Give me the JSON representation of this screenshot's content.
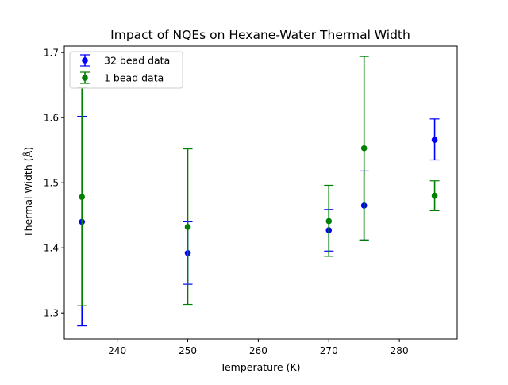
{
  "chart_data": {
    "type": "scatter",
    "title": "Impact of NQEs on Hexane-Water Thermal Width",
    "xlabel": "Temperature (K)",
    "ylabel": "Thermal Width (Å)",
    "xlim": [
      232.5,
      288.2
    ],
    "ylim": [
      1.26,
      1.71
    ],
    "xticks": [
      240,
      250,
      260,
      270,
      280
    ],
    "yticks": [
      1.3,
      1.4,
      1.5,
      1.6,
      1.7
    ],
    "grid": false,
    "legend_position": "top-left",
    "series": [
      {
        "name": "32 bead data",
        "color": "#0000ff",
        "x": [
          235,
          250,
          270,
          275,
          285
        ],
        "y": [
          1.44,
          1.392,
          1.427,
          1.465,
          1.566
        ],
        "yerr_low": [
          1.28,
          1.344,
          1.395,
          1.412,
          1.535
        ],
        "yerr_high": [
          1.602,
          1.44,
          1.459,
          1.518,
          1.598
        ]
      },
      {
        "name": "1 bead data",
        "color": "#008000",
        "x": [
          235,
          250,
          270,
          275,
          285
        ],
        "y": [
          1.478,
          1.432,
          1.441,
          1.553,
          1.48
        ],
        "yerr_low": [
          1.311,
          1.313,
          1.387,
          1.412,
          1.457
        ],
        "yerr_high": [
          1.646,
          1.552,
          1.496,
          1.694,
          1.503
        ]
      }
    ]
  }
}
